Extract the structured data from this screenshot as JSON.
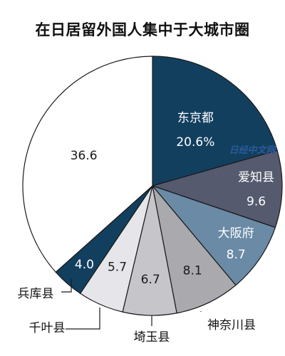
{
  "chart_data": {
    "type": "pie",
    "title": "在日居留外国人集中于大城市圈",
    "start_angle_deg": 0,
    "direction": "clockwise",
    "slices": [
      {
        "label": "东京都",
        "value": 20.6,
        "value_text": "20.6%",
        "color": "#133f5f",
        "text_color": "#ffffff",
        "label_mode": "inside"
      },
      {
        "label": "爱知县",
        "value": 9.6,
        "value_text": "9.6",
        "color": "#555a6e",
        "text_color": "#ffffff",
        "label_mode": "inside"
      },
      {
        "label": "大阪府",
        "value": 8.7,
        "value_text": "8.7",
        "color": "#6a8aa6",
        "text_color": "#ffffff",
        "label_mode": "inside"
      },
      {
        "label": "神奈川县",
        "value": 8.1,
        "value_text": "8.1",
        "color": "#a9a9ae",
        "text_color": "#1a1a1a",
        "label_mode": "outside"
      },
      {
        "label": "埼玉县",
        "value": 6.7,
        "value_text": "6.7",
        "color": "#c6c6ca",
        "text_color": "#1a1a1a",
        "label_mode": "outside"
      },
      {
        "label": "千叶县",
        "value": 5.7,
        "value_text": "5.7",
        "color": "#e6e6ea",
        "text_color": "#1a1a1a",
        "label_mode": "outside"
      },
      {
        "label": "兵库县",
        "value": 4.0,
        "value_text": "4.0",
        "color": "#133f5f",
        "text_color": "#ffffff",
        "label_mode": "outside"
      },
      {
        "label": "",
        "value": 36.6,
        "value_text": "36.6",
        "color": "#ffffff",
        "text_color": "#1a1a1a",
        "label_mode": "none"
      }
    ]
  },
  "watermark": "日经中文网"
}
